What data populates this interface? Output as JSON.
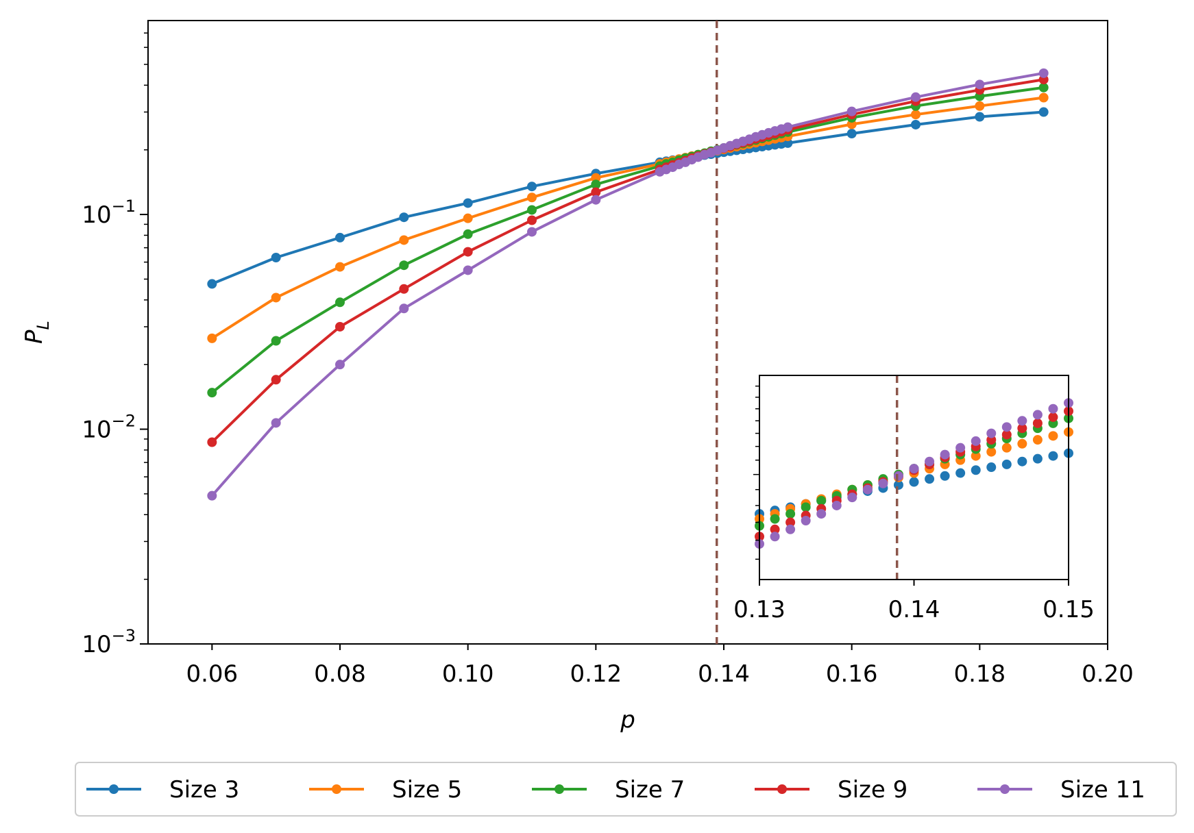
{
  "chart_data": {
    "type": "line",
    "title": "",
    "xlabel": "p",
    "ylabel": "P",
    "ylabel_sub": "L",
    "xlim": [
      0.05,
      0.2
    ],
    "ylim": [
      0.001,
      0.8
    ],
    "yscale": "log",
    "xticks": [
      "0.06",
      "0.08",
      "0.10",
      "0.12",
      "0.14",
      "0.16",
      "0.18",
      "0.20"
    ],
    "yticks": [
      {
        "base": "10",
        "exp": "−1",
        "value": 0.1
      },
      {
        "base": "10",
        "exp": "−2",
        "value": 0.01
      },
      {
        "base": "10",
        "exp": "−3",
        "value": 0.001
      }
    ],
    "threshold_p": 0.1389,
    "threshold_color": "#8c564b",
    "series": [
      {
        "name": "Size 3",
        "color": "#1f77b4",
        "points": [
          [
            0.06,
            0.0475
          ],
          [
            0.07,
            0.063
          ],
          [
            0.08,
            0.078
          ],
          [
            0.09,
            0.097
          ],
          [
            0.1,
            0.113
          ],
          [
            0.11,
            0.135
          ],
          [
            0.12,
            0.155
          ],
          [
            0.13,
            0.175
          ],
          [
            0.131,
            0.177
          ],
          [
            0.132,
            0.179
          ],
          [
            0.133,
            0.181
          ],
          [
            0.134,
            0.183
          ],
          [
            0.135,
            0.185
          ],
          [
            0.136,
            0.187
          ],
          [
            0.137,
            0.189
          ],
          [
            0.138,
            0.191
          ],
          [
            0.139,
            0.193
          ],
          [
            0.14,
            0.195
          ],
          [
            0.141,
            0.197
          ],
          [
            0.142,
            0.199
          ],
          [
            0.143,
            0.201
          ],
          [
            0.144,
            0.203
          ],
          [
            0.145,
            0.205
          ],
          [
            0.146,
            0.207
          ],
          [
            0.147,
            0.209
          ],
          [
            0.148,
            0.211
          ],
          [
            0.149,
            0.213
          ],
          [
            0.15,
            0.215
          ],
          [
            0.16,
            0.238
          ],
          [
            0.17,
            0.262
          ],
          [
            0.18,
            0.285
          ],
          [
            0.19,
            0.3
          ]
        ]
      },
      {
        "name": "Size 5",
        "color": "#ff7f0e",
        "points": [
          [
            0.06,
            0.0265
          ],
          [
            0.07,
            0.041
          ],
          [
            0.08,
            0.057
          ],
          [
            0.09,
            0.076
          ],
          [
            0.1,
            0.096
          ],
          [
            0.11,
            0.12
          ],
          [
            0.12,
            0.148
          ],
          [
            0.13,
            0.172
          ],
          [
            0.131,
            0.175
          ],
          [
            0.132,
            0.178
          ],
          [
            0.133,
            0.181
          ],
          [
            0.134,
            0.184
          ],
          [
            0.135,
            0.187
          ],
          [
            0.136,
            0.19
          ],
          [
            0.137,
            0.193
          ],
          [
            0.138,
            0.196
          ],
          [
            0.139,
            0.198
          ],
          [
            0.14,
            0.201
          ],
          [
            0.141,
            0.204
          ],
          [
            0.142,
            0.207
          ],
          [
            0.143,
            0.21
          ],
          [
            0.144,
            0.213
          ],
          [
            0.145,
            0.216
          ],
          [
            0.146,
            0.219
          ],
          [
            0.147,
            0.222
          ],
          [
            0.148,
            0.225
          ],
          [
            0.149,
            0.228
          ],
          [
            0.15,
            0.231
          ],
          [
            0.16,
            0.263
          ],
          [
            0.17,
            0.292
          ],
          [
            0.18,
            0.32
          ],
          [
            0.19,
            0.35
          ]
        ]
      },
      {
        "name": "Size 7",
        "color": "#2ca02c",
        "points": [
          [
            0.06,
            0.0148
          ],
          [
            0.07,
            0.0258
          ],
          [
            0.08,
            0.039
          ],
          [
            0.09,
            0.058
          ],
          [
            0.1,
            0.081
          ],
          [
            0.11,
            0.105
          ],
          [
            0.12,
            0.138
          ],
          [
            0.13,
            0.168
          ],
          [
            0.131,
            0.172
          ],
          [
            0.132,
            0.175
          ],
          [
            0.133,
            0.179
          ],
          [
            0.134,
            0.183
          ],
          [
            0.135,
            0.186
          ],
          [
            0.136,
            0.19
          ],
          [
            0.137,
            0.193
          ],
          [
            0.138,
            0.197
          ],
          [
            0.139,
            0.2
          ],
          [
            0.14,
            0.204
          ],
          [
            0.141,
            0.207
          ],
          [
            0.142,
            0.211
          ],
          [
            0.143,
            0.214
          ],
          [
            0.144,
            0.218
          ],
          [
            0.145,
            0.222
          ],
          [
            0.146,
            0.226
          ],
          [
            0.147,
            0.23
          ],
          [
            0.148,
            0.234
          ],
          [
            0.149,
            0.238
          ],
          [
            0.15,
            0.242
          ],
          [
            0.16,
            0.282
          ],
          [
            0.17,
            0.32
          ],
          [
            0.18,
            0.355
          ],
          [
            0.19,
            0.39
          ]
        ]
      },
      {
        "name": "Size 9",
        "color": "#d62728",
        "points": [
          [
            0.06,
            0.0087
          ],
          [
            0.07,
            0.017
          ],
          [
            0.08,
            0.03
          ],
          [
            0.09,
            0.045
          ],
          [
            0.1,
            0.067
          ],
          [
            0.11,
            0.094
          ],
          [
            0.12,
            0.127
          ],
          [
            0.13,
            0.162
          ],
          [
            0.131,
            0.166
          ],
          [
            0.132,
            0.17
          ],
          [
            0.133,
            0.174
          ],
          [
            0.134,
            0.178
          ],
          [
            0.135,
            0.183
          ],
          [
            0.136,
            0.187
          ],
          [
            0.137,
            0.191
          ],
          [
            0.138,
            0.195
          ],
          [
            0.139,
            0.199
          ],
          [
            0.14,
            0.203
          ],
          [
            0.141,
            0.207
          ],
          [
            0.142,
            0.212
          ],
          [
            0.143,
            0.216
          ],
          [
            0.144,
            0.22
          ],
          [
            0.145,
            0.225
          ],
          [
            0.146,
            0.229
          ],
          [
            0.147,
            0.234
          ],
          [
            0.148,
            0.238
          ],
          [
            0.149,
            0.243
          ],
          [
            0.15,
            0.248
          ],
          [
            0.16,
            0.292
          ],
          [
            0.17,
            0.337
          ],
          [
            0.18,
            0.38
          ],
          [
            0.19,
            0.425
          ]
        ]
      },
      {
        "name": "Size 11",
        "color": "#9467bd",
        "points": [
          [
            0.06,
            0.0049
          ],
          [
            0.07,
            0.0107
          ],
          [
            0.08,
            0.02
          ],
          [
            0.09,
            0.0365
          ],
          [
            0.1,
            0.055
          ],
          [
            0.11,
            0.083
          ],
          [
            0.12,
            0.117
          ],
          [
            0.13,
            0.158
          ],
          [
            0.131,
            0.162
          ],
          [
            0.132,
            0.166
          ],
          [
            0.133,
            0.171
          ],
          [
            0.134,
            0.175
          ],
          [
            0.135,
            0.18
          ],
          [
            0.136,
            0.185
          ],
          [
            0.137,
            0.19
          ],
          [
            0.138,
            0.194
          ],
          [
            0.139,
            0.199
          ],
          [
            0.14,
            0.204
          ],
          [
            0.141,
            0.209
          ],
          [
            0.142,
            0.214
          ],
          [
            0.143,
            0.219
          ],
          [
            0.144,
            0.224
          ],
          [
            0.145,
            0.23
          ],
          [
            0.146,
            0.235
          ],
          [
            0.147,
            0.24
          ],
          [
            0.148,
            0.245
          ],
          [
            0.149,
            0.25
          ],
          [
            0.15,
            0.255
          ],
          [
            0.16,
            0.302
          ],
          [
            0.17,
            0.352
          ],
          [
            0.18,
            0.403
          ],
          [
            0.19,
            0.455
          ]
        ]
      }
    ],
    "inset": {
      "type": "scatter",
      "xlim": [
        0.13,
        0.15
      ],
      "ylim": [
        0.14,
        0.28
      ],
      "xticks": [
        "0.13",
        "0.14",
        "0.15"
      ],
      "yticks_minor": [
        0.15,
        0.16,
        0.17,
        0.18,
        0.19,
        0.2,
        0.21,
        0.22,
        0.23,
        0.24,
        0.25,
        0.26,
        0.27
      ],
      "location": "lower-right"
    },
    "legend": {
      "placement": "below",
      "ncol": 5
    }
  }
}
